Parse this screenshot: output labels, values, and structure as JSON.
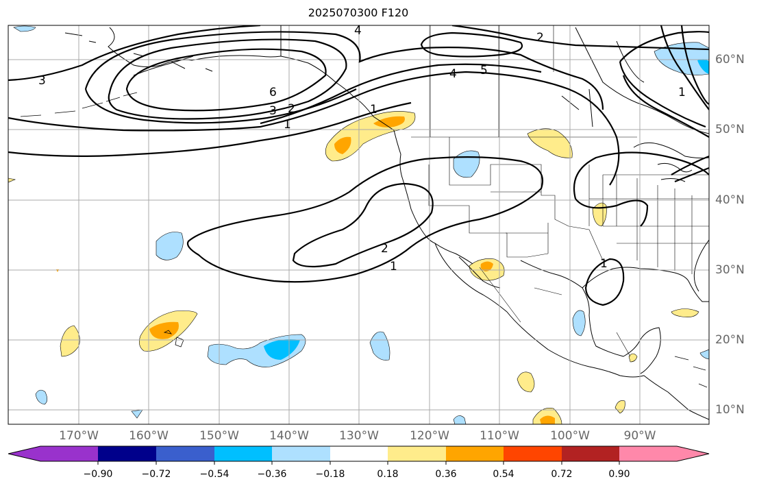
{
  "title": "2025070300 F120",
  "lon_labels": [
    "170°W",
    "160°W",
    "150°W",
    "140°W",
    "130°W",
    "120°W",
    "110°W",
    "100°W",
    "90°W"
  ],
  "lat_labels": [
    "60°N",
    "50°N",
    "40°N",
    "30°N",
    "20°N",
    "10°N"
  ],
  "colorbar": {
    "ticks": [
      "−0.90",
      "−0.72",
      "−0.54",
      "−0.36",
      "−0.18",
      "0.18",
      "0.36",
      "0.54",
      "0.72",
      "0.90"
    ],
    "colors": [
      "#9932cc",
      "#00008b",
      "#3a5fcd",
      "#00bfff",
      "#aee0ff",
      "#ffffff",
      "#ffec8b",
      "#ffa500",
      "#ff4500",
      "#b22222",
      "#ff88aa"
    ]
  },
  "contour_labels": [
    "4",
    "2",
    "3",
    "6",
    "3",
    "2",
    "1",
    "4",
    "5",
    "2",
    "1",
    "1",
    "1",
    "1"
  ],
  "fill_colors": {
    "light_blue": "#aee0ff",
    "blue": "#00bfff",
    "light_yellow": "#ffec8b",
    "orange": "#ffa500"
  }
}
